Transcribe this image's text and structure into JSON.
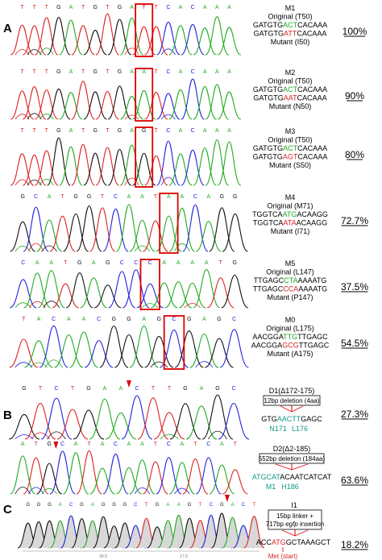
{
  "panels": {
    "A": "A",
    "B": "B",
    "C": "C"
  },
  "colors": {
    "A": "#22aa22",
    "C": "#2222dd",
    "G": "#111111",
    "T": "#dd2222",
    "highlight": "#dd0000",
    "wt": "#22aa22",
    "mut": "#dd2222",
    "teal": "#119988"
  },
  "rows": [
    {
      "id": "M1",
      "seq": [
        "T",
        "T",
        "T",
        "G",
        "A",
        "T",
        "G",
        "T",
        "G",
        "A",
        "T",
        "T",
        "C",
        "A",
        "C",
        "A",
        "A",
        "A"
      ],
      "box_index": 10,
      "title": "M1",
      "original": "Original (T50)",
      "wt": {
        "pre": "GATGTG",
        "mid": "ACT",
        "post": "CACAAA"
      },
      "mut": {
        "pre": "GATGTG",
        "mid": "ATT",
        "post": "CACAAA"
      },
      "mutant": "Mutant (I50)",
      "pct": "100%"
    },
    {
      "id": "M2",
      "seq": [
        "T",
        "T",
        "T",
        "G",
        "A",
        "T",
        "G",
        "T",
        "G",
        "A",
        "A",
        "T",
        "C",
        "A",
        "C",
        "A",
        "A",
        "A"
      ],
      "box_index": 10,
      "title": "M2",
      "original": "Original (T50)",
      "wt": {
        "pre": "GATGTG",
        "mid": "ACT",
        "post": "CACAAA"
      },
      "mut": {
        "pre": "GATGTG",
        "mid": "AAT",
        "post": "CACAAA"
      },
      "mutant": "Mutant (N50)",
      "pct": "90%"
    },
    {
      "id": "M3",
      "seq": [
        "T",
        "T",
        "T",
        "G",
        "A",
        "T",
        "G",
        "T",
        "G",
        "A",
        "G",
        "T",
        "C",
        "A",
        "C",
        "A",
        "A",
        "A"
      ],
      "box_index": 10,
      "title": "M3",
      "original": "Original (T50)",
      "wt": {
        "pre": "GATGTG",
        "mid": "ACT",
        "post": "CACAAA"
      },
      "mut": {
        "pre": "GATGTG",
        "mid": "AGT",
        "post": "CACAAA"
      },
      "mutant": "Mutant (S50)",
      "pct": "80%"
    },
    {
      "id": "M4",
      "seq": [
        "G",
        "C",
        "A",
        "T",
        "G",
        "G",
        "T",
        "C",
        "A",
        "A",
        "T",
        "A",
        "A",
        "C",
        "A",
        "G",
        "G"
      ],
      "box_index": 11,
      "title": "M4",
      "original": "Original (M71)",
      "wt": {
        "pre": "TGGTCA",
        "mid": "ATG",
        "post": "ACAAGG"
      },
      "mut": {
        "pre": "TGGTCA",
        "mid": "ATA",
        "post": "ACAAGG"
      },
      "mutant": "Mutant (I71)",
      "pct": "72.7%"
    },
    {
      "id": "M5",
      "seq": [
        "C",
        "A",
        "A",
        "T",
        "G",
        "A",
        "G",
        "C",
        "C",
        "C",
        "A",
        "A",
        "A",
        "A",
        "T",
        "G"
      ],
      "box_index": 9,
      "title": "M5",
      "original": "Original (L147)",
      "wt": {
        "pre": "TTGAGC",
        "mid": "CTA",
        "post": "AAAATG"
      },
      "mut": {
        "pre": "TTGAGC",
        "mid": "CCA",
        "post": "AAAATG"
      },
      "mutant": "Mutant (P147)",
      "pct": "37.5%"
    },
    {
      "id": "M0",
      "seq": [
        "T",
        "A",
        "C",
        "A",
        "A",
        "C",
        "G",
        "G",
        "A",
        "G",
        "C",
        "G",
        "A",
        "G",
        "C"
      ],
      "box_index": 10,
      "title": "M0",
      "original": "Original (L175)",
      "wt": {
        "pre": "AACGGA",
        "mid": "TTG",
        "post": "TTGAGC"
      },
      "mut": {
        "pre": "AACGGA",
        "mid": "GCG",
        "post": "TTGAGC"
      },
      "mutant": "Mutant (A175)",
      "pct": "54.5%"
    }
  ],
  "d1": {
    "seq": [
      "G",
      "T",
      "C",
      "T",
      "G",
      "A",
      "A",
      "C",
      "T",
      "T",
      "G",
      "A",
      "G",
      "C"
    ],
    "arrow_index": 7,
    "title": "D1(Δ172-175)",
    "box": "12bp deletion (4aa)",
    "seq_text": {
      "pre": "GTG",
      "mid": "AACTT",
      "post": "GAGC"
    },
    "res_left": "N171",
    "res_right": "L176",
    "pct": "27.3%"
  },
  "d2": {
    "seq": [
      "A",
      "T",
      "G",
      "C",
      "A",
      "T",
      "A",
      "C",
      "A",
      "A",
      "T",
      "C",
      "A",
      "T",
      "C",
      "A",
      "T"
    ],
    "arrow_index": 3,
    "title": "D2(Δ2-185)",
    "box": "552bp deletion (184aa)",
    "seq_text": {
      "pre": "",
      "mid": "ATGCAT",
      "post": "ACAATCATCAT"
    },
    "res_left": "M1",
    "res_right": "H186",
    "pct": "63.6%"
  },
  "i1": {
    "seq": [
      "G",
      "G",
      "G",
      "A",
      "C",
      "G",
      "A",
      "G",
      "G",
      "G",
      "C",
      "T",
      "G",
      "A",
      "A",
      "G",
      "T",
      "C",
      "G",
      "A",
      "C",
      "T"
    ],
    "arrow_index": 19,
    "tick_left": "39.0",
    "tick_right": "17.0",
    "title": "I1",
    "box_line1": "15bp linker +",
    "box_line2_pre": "717bp ",
    "box_line2_em": "egfp",
    "box_line2_post": " insertion",
    "seq_text": {
      "pre": "ACC",
      "mid": "ATG",
      "post": "GCTAAAGCT"
    },
    "met": "Met (start)",
    "pct": "18.2%"
  }
}
